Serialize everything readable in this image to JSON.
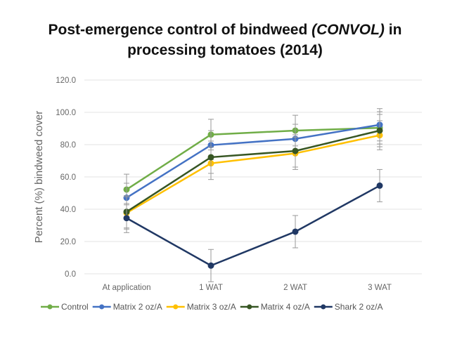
{
  "chart_data": {
    "type": "line",
    "title_parts": [
      "Post-emergence control of bindweed ",
      "(CONVOL)",
      " in",
      "processing tomatoes (2014)"
    ],
    "xlabel": "",
    "ylabel": "Percent (%) bindweed cover",
    "categories": [
      "At application",
      "1 WAT",
      "2 WAT",
      "3 WAT"
    ],
    "ylim": [
      0,
      120
    ],
    "yticks": [
      "0.0",
      "20.0",
      "40.0",
      "60.0",
      "80.0",
      "100.0",
      "120.0"
    ],
    "grid": true,
    "legend_position": "bottom",
    "series": [
      {
        "name": "Control",
        "color": "#70ad47",
        "values": [
          52.2,
          86.2,
          88.7,
          90.4
        ],
        "errors": [
          9.5,
          9.5,
          9.5,
          10
        ]
      },
      {
        "name": "Matrix 2 oz/A",
        "color": "#4472c4",
        "values": [
          47.1,
          79.7,
          83.6,
          92.3
        ],
        "errors": [
          9,
          9,
          9,
          10
        ]
      },
      {
        "name": "Matrix 3 oz/A",
        "color": "#ffc000",
        "values": [
          37.7,
          68.4,
          74.6,
          85.8
        ],
        "errors": [
          10,
          10,
          10,
          9
        ]
      },
      {
        "name": "Matrix 4 oz/A",
        "color": "#375623",
        "values": [
          38.4,
          72.2,
          76.1,
          88.7
        ],
        "errors": [
          10,
          10,
          10,
          10
        ]
      },
      {
        "name": "Shark 2 oz/A",
        "color": "#203864",
        "values": [
          34.5,
          5.1,
          26.1,
          54.6
        ],
        "errors": [
          9,
          10,
          10,
          10
        ]
      }
    ]
  }
}
